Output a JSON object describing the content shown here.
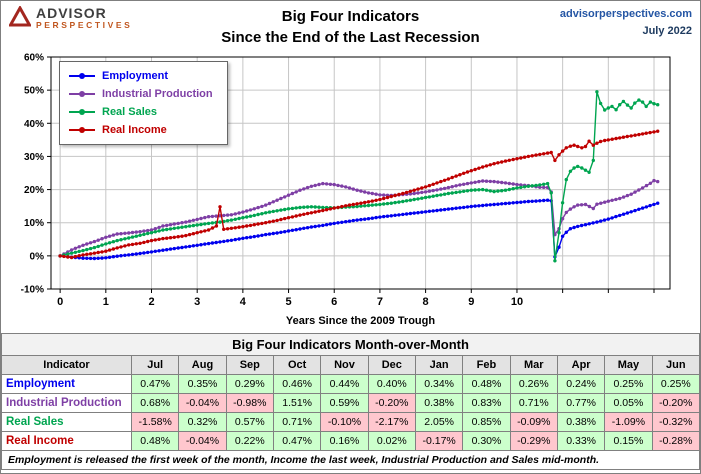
{
  "header": {
    "brand_top": "ADVISOR",
    "brand_bottom": "PERSPECTIVES",
    "title_line1": "Big Four Indicators",
    "title_line2": "Since the End of the Last Recession",
    "site": "advisorperspectives.com",
    "date": "July 2022"
  },
  "chart_data": {
    "type": "line",
    "title": "Big Four Indicators Since the End of the Last Recession",
    "xlabel": "Years Since the 2009 Trough",
    "ylabel": "",
    "xlim": [
      -0.2,
      13.35
    ],
    "ylim": [
      -10,
      60
    ],
    "ytick_step": 10,
    "ytick_format": "percent",
    "xgrid_max": 13,
    "xticks_labeled": [
      0,
      1,
      2,
      3,
      4,
      5,
      6,
      7,
      8,
      9,
      10
    ],
    "grid": true,
    "legend_position": "top-left",
    "marker": "circle",
    "series": [
      {
        "name": "Employment",
        "color": "#0000ee",
        "points": [
          [
            0,
            0
          ],
          [
            0.25,
            -0.4
          ],
          [
            0.5,
            -0.7
          ],
          [
            0.75,
            -0.8
          ],
          [
            1,
            -0.6
          ],
          [
            1.25,
            -0.1
          ],
          [
            1.5,
            0.3
          ],
          [
            1.75,
            0.7
          ],
          [
            2,
            1.2
          ],
          [
            2.25,
            1.7
          ],
          [
            2.5,
            2.2
          ],
          [
            2.75,
            2.7
          ],
          [
            3,
            3.2
          ],
          [
            3.25,
            3.7
          ],
          [
            3.5,
            4.2
          ],
          [
            3.75,
            4.7
          ],
          [
            4,
            5.3
          ],
          [
            4.25,
            5.8
          ],
          [
            4.5,
            6.4
          ],
          [
            4.75,
            6.9
          ],
          [
            5,
            7.5
          ],
          [
            5.25,
            8.1
          ],
          [
            5.5,
            8.7
          ],
          [
            5.75,
            9.2
          ],
          [
            6,
            9.8
          ],
          [
            6.25,
            10.3
          ],
          [
            6.5,
            10.8
          ],
          [
            6.75,
            11.2
          ],
          [
            7,
            11.7
          ],
          [
            7.25,
            12.1
          ],
          [
            7.5,
            12.5
          ],
          [
            7.75,
            12.9
          ],
          [
            8,
            13.3
          ],
          [
            8.25,
            13.7
          ],
          [
            8.5,
            14.1
          ],
          [
            8.75,
            14.5
          ],
          [
            9,
            14.9
          ],
          [
            9.25,
            15.2
          ],
          [
            9.5,
            15.5
          ],
          [
            9.75,
            15.8
          ],
          [
            10,
            16.1
          ],
          [
            10.25,
            16.4
          ],
          [
            10.5,
            16.6
          ],
          [
            10.67,
            16.8
          ],
          [
            10.75,
            16.6
          ],
          [
            10.83,
            -0.3
          ],
          [
            10.92,
            2.6
          ],
          [
            11,
            5.9
          ],
          [
            11.08,
            7.1
          ],
          [
            11.17,
            8.2
          ],
          [
            11.33,
            8.9
          ],
          [
            11.5,
            9.4
          ],
          [
            11.75,
            10.2
          ],
          [
            12,
            11.1
          ],
          [
            12.25,
            12.2
          ],
          [
            12.5,
            13.3
          ],
          [
            12.75,
            14.4
          ],
          [
            13.08,
            15.9
          ]
        ]
      },
      {
        "name": "Industrial Production",
        "color": "#7e3fa5",
        "points": [
          [
            0,
            0
          ],
          [
            0.25,
            1.8
          ],
          [
            0.5,
            3.2
          ],
          [
            0.75,
            4.3
          ],
          [
            1,
            5.6
          ],
          [
            1.25,
            6.6
          ],
          [
            1.5,
            6.9
          ],
          [
            1.75,
            7.3
          ],
          [
            2,
            7.8
          ],
          [
            2.25,
            9
          ],
          [
            2.5,
            9.6
          ],
          [
            2.75,
            10.2
          ],
          [
            3,
            11
          ],
          [
            3.25,
            11.8
          ],
          [
            3.5,
            12.1
          ],
          [
            3.75,
            12.4
          ],
          [
            4,
            13.2
          ],
          [
            4.25,
            14.2
          ],
          [
            4.5,
            15.3
          ],
          [
            4.75,
            16.8
          ],
          [
            5,
            18.3
          ],
          [
            5.25,
            19.8
          ],
          [
            5.5,
            21
          ],
          [
            5.75,
            21.8
          ],
          [
            6,
            21.5
          ],
          [
            6.25,
            20.8
          ],
          [
            6.5,
            19.8
          ],
          [
            6.75,
            19
          ],
          [
            7,
            18.4
          ],
          [
            7.25,
            18.2
          ],
          [
            7.5,
            18.5
          ],
          [
            7.75,
            18.8
          ],
          [
            8,
            19.3
          ],
          [
            8.25,
            19.9
          ],
          [
            8.5,
            20.6
          ],
          [
            8.75,
            21.4
          ],
          [
            9,
            22
          ],
          [
            9.25,
            22.6
          ],
          [
            9.5,
            22.4
          ],
          [
            9.75,
            22
          ],
          [
            10,
            21.5
          ],
          [
            10.25,
            21.2
          ],
          [
            10.5,
            20.7
          ],
          [
            10.67,
            20.6
          ],
          [
            10.75,
            19.3
          ],
          [
            10.83,
            6.4
          ],
          [
            10.92,
            8.2
          ],
          [
            11,
            11.2
          ],
          [
            11.08,
            13.1
          ],
          [
            11.17,
            14.1
          ],
          [
            11.25,
            14.8
          ],
          [
            11.33,
            15.3
          ],
          [
            11.5,
            15.5
          ],
          [
            11.67,
            14.3
          ],
          [
            11.75,
            15.6
          ],
          [
            11.92,
            16.2
          ],
          [
            12,
            16.5
          ],
          [
            12.25,
            17.3
          ],
          [
            12.5,
            18.6
          ],
          [
            12.75,
            20.5
          ],
          [
            12.92,
            21.9
          ],
          [
            13,
            22.7
          ],
          [
            13.08,
            22.4
          ]
        ]
      },
      {
        "name": "Real Sales",
        "color": "#00a550",
        "points": [
          [
            0,
            0
          ],
          [
            0.25,
            0.8
          ],
          [
            0.5,
            1.6
          ],
          [
            0.75,
            2.5
          ],
          [
            1,
            3.6
          ],
          [
            1.25,
            4.6
          ],
          [
            1.5,
            5.4
          ],
          [
            1.75,
            6.2
          ],
          [
            2,
            7
          ],
          [
            2.25,
            7.8
          ],
          [
            2.5,
            8.3
          ],
          [
            2.75,
            8.8
          ],
          [
            3,
            9.3
          ],
          [
            3.25,
            9.8
          ],
          [
            3.5,
            10.2
          ],
          [
            3.75,
            10.8
          ],
          [
            4,
            11.5
          ],
          [
            4.25,
            12.2
          ],
          [
            4.5,
            13
          ],
          [
            4.75,
            13.6
          ],
          [
            5,
            14.2
          ],
          [
            5.25,
            14.6
          ],
          [
            5.5,
            14.8
          ],
          [
            5.75,
            14.6
          ],
          [
            6,
            14.5
          ],
          [
            6.25,
            14.7
          ],
          [
            6.5,
            14.9
          ],
          [
            6.75,
            15.2
          ],
          [
            7,
            15.5
          ],
          [
            7.25,
            15.9
          ],
          [
            7.5,
            16.4
          ],
          [
            7.75,
            17
          ],
          [
            8,
            17.6
          ],
          [
            8.25,
            18.2
          ],
          [
            8.5,
            18.8
          ],
          [
            8.75,
            19.3
          ],
          [
            9,
            19.8
          ],
          [
            9.25,
            20
          ],
          [
            9.5,
            19.4
          ],
          [
            9.75,
            19.8
          ],
          [
            10,
            20.5
          ],
          [
            10.25,
            21
          ],
          [
            10.5,
            21.4
          ],
          [
            10.67,
            21.8
          ],
          [
            10.75,
            19
          ],
          [
            10.83,
            -1.5
          ],
          [
            10.92,
            7
          ],
          [
            11,
            16
          ],
          [
            11.08,
            23
          ],
          [
            11.17,
            25.5
          ],
          [
            11.25,
            26.5
          ],
          [
            11.33,
            27
          ],
          [
            11.42,
            26.5
          ],
          [
            11.58,
            25.2
          ],
          [
            11.67,
            28.8
          ],
          [
            11.75,
            49.5
          ],
          [
            11.83,
            46
          ],
          [
            11.92,
            44
          ],
          [
            12,
            44.6
          ],
          [
            12.08,
            45.1
          ],
          [
            12.17,
            44.1
          ],
          [
            12.25,
            45.6
          ],
          [
            12.33,
            46.6
          ],
          [
            12.42,
            45.5
          ],
          [
            12.5,
            44.6
          ],
          [
            12.58,
            46.1
          ],
          [
            12.67,
            47
          ],
          [
            12.75,
            46.4
          ],
          [
            12.83,
            45.1
          ],
          [
            12.92,
            46.4
          ],
          [
            13,
            45.9
          ],
          [
            13.08,
            45.6
          ]
        ]
      },
      {
        "name": "Real Income",
        "color": "#c00000",
        "points": [
          [
            0,
            0
          ],
          [
            0.25,
            -0.5
          ],
          [
            0.5,
            0.3
          ],
          [
            0.75,
            0.8
          ],
          [
            1,
            1.4
          ],
          [
            1.25,
            2.4
          ],
          [
            1.5,
            3.3
          ],
          [
            1.75,
            3.8
          ],
          [
            2,
            4.6
          ],
          [
            2.25,
            5.2
          ],
          [
            2.5,
            5.6
          ],
          [
            2.75,
            6.1
          ],
          [
            3,
            7
          ],
          [
            3.25,
            7.8
          ],
          [
            3.42,
            9
          ],
          [
            3.5,
            14.8
          ],
          [
            3.58,
            8
          ],
          [
            3.75,
            8.3
          ],
          [
            4,
            8.8
          ],
          [
            4.25,
            9.4
          ],
          [
            4.5,
            10
          ],
          [
            4.75,
            10.7
          ],
          [
            5,
            11.5
          ],
          [
            5.25,
            12.3
          ],
          [
            5.5,
            13
          ],
          [
            5.75,
            13.7
          ],
          [
            6,
            14.4
          ],
          [
            6.25,
            15.1
          ],
          [
            6.5,
            15.7
          ],
          [
            6.75,
            16.3
          ],
          [
            7,
            17
          ],
          [
            7.25,
            17.9
          ],
          [
            7.5,
            18.8
          ],
          [
            7.75,
            19.8
          ],
          [
            8,
            20.8
          ],
          [
            8.25,
            22
          ],
          [
            8.5,
            23.2
          ],
          [
            8.75,
            24.5
          ],
          [
            9,
            25.7
          ],
          [
            9.25,
            26.8
          ],
          [
            9.5,
            27.8
          ],
          [
            9.75,
            28.6
          ],
          [
            10,
            29.3
          ],
          [
            10.25,
            30
          ],
          [
            10.5,
            30.6
          ],
          [
            10.67,
            31
          ],
          [
            10.75,
            31.2
          ],
          [
            10.83,
            28.8
          ],
          [
            10.92,
            30.5
          ],
          [
            11,
            31.6
          ],
          [
            11.08,
            32.6
          ],
          [
            11.17,
            33.1
          ],
          [
            11.25,
            33.4
          ],
          [
            11.33,
            33
          ],
          [
            11.42,
            32.6
          ],
          [
            11.5,
            33
          ],
          [
            11.58,
            34.6
          ],
          [
            11.67,
            33.4
          ],
          [
            11.75,
            34
          ],
          [
            11.83,
            34.5
          ],
          [
            11.92,
            34.8
          ],
          [
            12,
            35
          ],
          [
            12.17,
            35.4
          ],
          [
            12.33,
            35.8
          ],
          [
            12.5,
            36.2
          ],
          [
            12.67,
            36.6
          ],
          [
            12.83,
            37
          ],
          [
            13,
            37.4
          ],
          [
            13.08,
            37.6
          ]
        ]
      }
    ]
  },
  "table": {
    "title": "Big Four Indicators Month-over-Month",
    "indicator_header": "Indicator",
    "months": [
      "Jul",
      "Aug",
      "Sep",
      "Oct",
      "Nov",
      "Dec",
      "Jan",
      "Feb",
      "Mar",
      "Apr",
      "May",
      "Jun"
    ],
    "positive_bg": "#ccffcc",
    "negative_bg": "#ffc7ce",
    "rows": [
      {
        "label": "Employment",
        "color": "#0000ee",
        "values": [
          "0.47%",
          "0.35%",
          "0.29%",
          "0.46%",
          "0.44%",
          "0.40%",
          "0.34%",
          "0.48%",
          "0.26%",
          "0.24%",
          "0.25%",
          "0.25%"
        ]
      },
      {
        "label": "Industrial Production",
        "color": "#7e3fa5",
        "values": [
          "0.68%",
          "-0.04%",
          "-0.98%",
          "1.51%",
          "0.59%",
          "-0.20%",
          "0.38%",
          "0.83%",
          "0.71%",
          "0.77%",
          "0.05%",
          "-0.20%"
        ]
      },
      {
        "label": "Real Sales",
        "color": "#00a550",
        "values": [
          "-1.58%",
          "0.32%",
          "0.57%",
          "0.71%",
          "-0.10%",
          "-2.17%",
          "2.05%",
          "0.85%",
          "-0.09%",
          "0.38%",
          "-1.09%",
          "-0.32%"
        ]
      },
      {
        "label": "Real Income",
        "color": "#c00000",
        "values": [
          "0.48%",
          "-0.04%",
          "0.22%",
          "0.47%",
          "0.16%",
          "0.02%",
          "-0.17%",
          "0.30%",
          "-0.29%",
          "0.33%",
          "0.15%",
          "-0.28%"
        ]
      }
    ]
  },
  "footnote": "Employment is released the first week of the month, Income the last week, Industrial Production and Sales mid-month."
}
